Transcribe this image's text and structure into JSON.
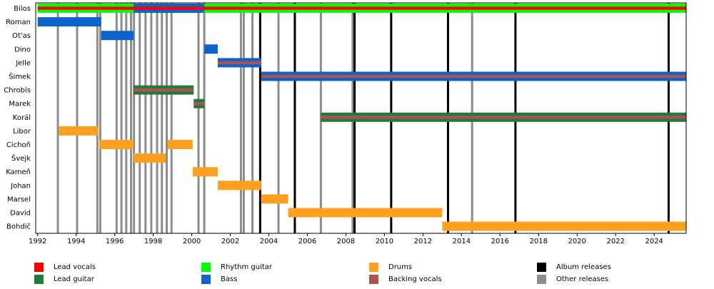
{
  "chart_data": {
    "type": "timeline",
    "members": [
      "Bilos",
      "Roman",
      "Ot'as",
      "Dino",
      "Jelle",
      "Šimek",
      "Chrobis",
      "Marek",
      "Korál",
      "Libor",
      "Cichoň",
      "Švejk",
      "Kameň",
      "Johan",
      "Marsel",
      "David",
      "Bohdič"
    ],
    "xlim": [
      1991.9,
      2025.66
    ],
    "x_ticks": [
      1992,
      1994,
      1996,
      1998,
      2000,
      2002,
      2004,
      2006,
      2008,
      2010,
      2012,
      2014,
      2016,
      2018,
      2020,
      2022,
      2024
    ],
    "periods": [
      {
        "member": "Bilos",
        "start": 1992.0,
        "end": 2025.66,
        "roles": [
          "lead_vocals",
          "rhythm_guitar"
        ]
      },
      {
        "member": "Bilos",
        "start": 1996.98,
        "end": 2000.65,
        "roles": [
          "lead_vocals",
          "bass"
        ]
      },
      {
        "member": "Roman",
        "start": 1992.0,
        "end": 1995.3,
        "roles": [
          "bass"
        ]
      },
      {
        "member": "Ot'as",
        "start": 1995.3,
        "end": 1996.98,
        "roles": [
          "bass"
        ]
      },
      {
        "member": "Dino",
        "start": 2000.65,
        "end": 2001.35,
        "roles": [
          "bass"
        ]
      },
      {
        "member": "Jelle",
        "start": 2001.35,
        "end": 2003.6,
        "roles": [
          "bass",
          "backing_vocals"
        ]
      },
      {
        "member": "Šimek",
        "start": 2003.6,
        "end": 2025.66,
        "roles": [
          "bass",
          "backing_vocals"
        ]
      },
      {
        "member": "Chrobis",
        "start": 1996.98,
        "end": 2000.1,
        "roles": [
          "lead_guitar",
          "backing_vocals"
        ]
      },
      {
        "member": "Marek",
        "start": 2000.1,
        "end": 2000.65,
        "roles": [
          "lead_guitar",
          "backing_vocals"
        ]
      },
      {
        "member": "Korál",
        "start": 2006.7,
        "end": 2025.66,
        "roles": [
          "lead_guitar",
          "backing_vocals"
        ]
      },
      {
        "member": "Libor",
        "start": 1993.1,
        "end": 1995.15,
        "roles": [
          "drums"
        ]
      },
      {
        "member": "Cichoň",
        "start": 1995.2,
        "end": 1996.98,
        "roles": [
          "drums"
        ]
      },
      {
        "member": "Cichoň",
        "start": 1998.75,
        "end": 2000.05,
        "roles": [
          "drums"
        ]
      },
      {
        "member": "Švejk",
        "start": 1996.98,
        "end": 1998.65,
        "roles": [
          "drums"
        ]
      },
      {
        "member": "Kameň",
        "start": 2000.05,
        "end": 2001.35,
        "roles": [
          "drums"
        ]
      },
      {
        "member": "Johan",
        "start": 2001.35,
        "end": 2003.6,
        "roles": [
          "drums"
        ]
      },
      {
        "member": "Marsel",
        "start": 2003.6,
        "end": 2005.0,
        "roles": [
          "drums"
        ]
      },
      {
        "member": "David",
        "start": 2005.0,
        "end": 2013.0,
        "roles": [
          "drums"
        ]
      },
      {
        "member": "Bohdič",
        "start": 2013.0,
        "end": 2025.66,
        "roles": [
          "drums"
        ]
      }
    ],
    "album_releases": [
      2003.55,
      2005.35,
      2008.45,
      2010.35,
      2013.3,
      2016.8,
      2024.75
    ],
    "other_releases": [
      1993.05,
      1994.05,
      1995.1,
      1995.25,
      1996.1,
      1996.35,
      1996.6,
      1996.85,
      1997.0,
      1997.3,
      1997.6,
      1997.9,
      1998.2,
      1998.45,
      1998.7,
      1998.95,
      2000.35,
      2000.65,
      2002.55,
      2002.7,
      2003.15,
      2004.5,
      2006.7,
      2008.35,
      2014.55
    ],
    "legend": [
      {
        "key": "lead_vocals",
        "label": "Lead vocals",
        "color": "#ff0000"
      },
      {
        "key": "lead_guitar",
        "label": "Lead guitar",
        "color": "#1e7b3a"
      },
      {
        "key": "rhythm_guitar",
        "label": "Rhythm guitar",
        "color": "#00ff00"
      },
      {
        "key": "bass",
        "label": "Bass",
        "color": "#0a64cc"
      },
      {
        "key": "drums",
        "label": "Drums",
        "color": "#ffa020"
      },
      {
        "key": "backing_vocals",
        "label": "Backing vocals",
        "color": "#b05050"
      },
      {
        "key": "album_releases",
        "label": "Album releases",
        "color": "#000000"
      },
      {
        "key": "other_releases",
        "label": "Other releases",
        "color": "#8c8c8c"
      }
    ]
  }
}
